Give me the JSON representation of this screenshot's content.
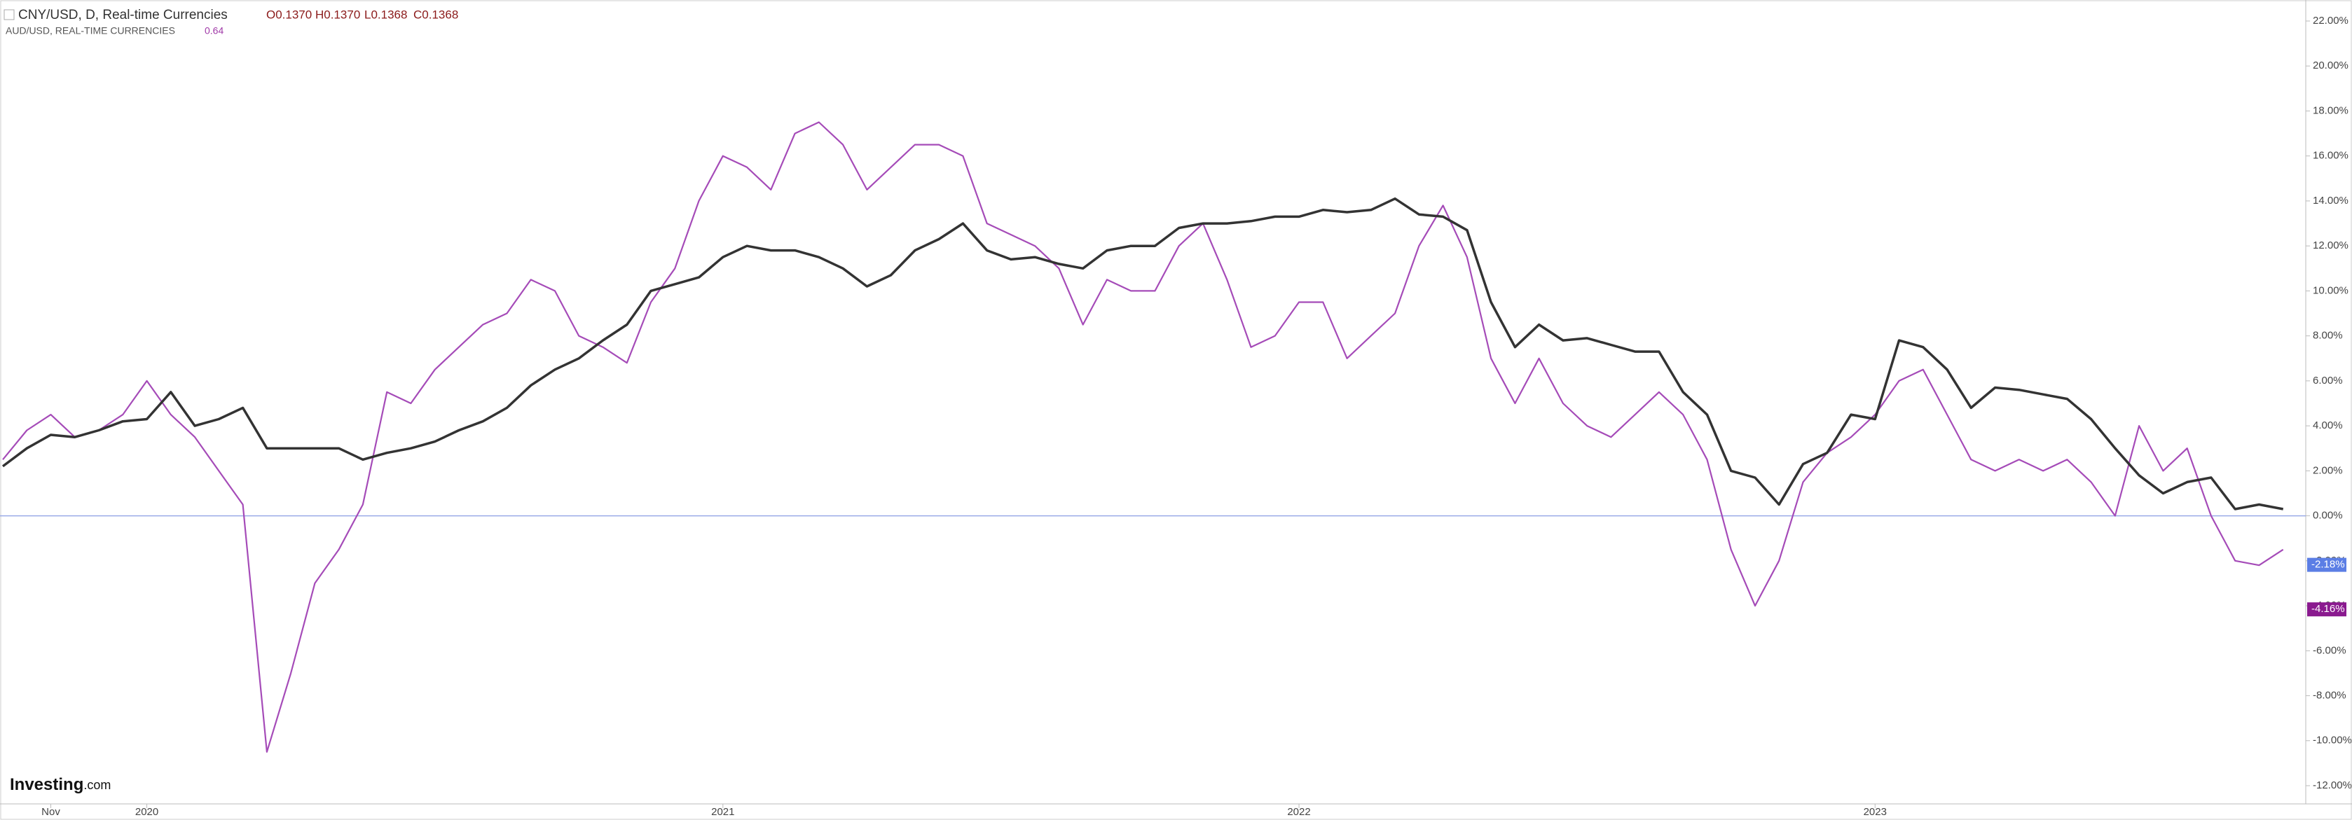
{
  "chart_data": {
    "type": "line",
    "title": "CNY/USD, D, Real-time Currencies",
    "ohlc": [
      "O0.1370",
      "H0.1370",
      "L0.1368",
      "C0.1368"
    ],
    "subtitle": "AUD/USD, REAL-TIME CURRENCIES",
    "subtitle_value": "0.64",
    "logo": [
      "Investing",
      ".com"
    ],
    "categories": [
      null,
      null,
      "Nov",
      null,
      null,
      null,
      "2020",
      null,
      null,
      null,
      null,
      null,
      null,
      null,
      null,
      null,
      null,
      null,
      null,
      null,
      null,
      null,
      null,
      null,
      null,
      null,
      null,
      null,
      null,
      null,
      "2021",
      null,
      null,
      null,
      null,
      null,
      null,
      null,
      null,
      null,
      null,
      null,
      null,
      null,
      null,
      null,
      null,
      null,
      null,
      null,
      null,
      null,
      null,
      null,
      "2022",
      null,
      null,
      null,
      null,
      null,
      null,
      null,
      null,
      null,
      null,
      null,
      null,
      null,
      null,
      null,
      null,
      null,
      null,
      null,
      null,
      null,
      null,
      null,
      "2023",
      null,
      null,
      null,
      null,
      null,
      null,
      null,
      null,
      null,
      null,
      null,
      null,
      null,
      null,
      null,
      null,
      null
    ],
    "series": [
      {
        "name": "CNY/USD",
        "color": "#333333",
        "values": [
          2.2,
          3.0,
          3.6,
          3.5,
          3.8,
          4.2,
          4.3,
          5.5,
          4.0,
          4.3,
          4.8,
          3.0,
          3.0,
          3.0,
          3.0,
          2.5,
          2.8,
          3.0,
          3.3,
          3.8,
          4.2,
          4.8,
          5.8,
          6.5,
          7.0,
          7.8,
          8.5,
          10.0,
          10.3,
          10.6,
          11.5,
          12.0,
          11.8,
          11.8,
          11.5,
          11.0,
          10.2,
          10.7,
          11.8,
          12.3,
          13.0,
          11.8,
          11.4,
          11.5,
          11.2,
          11.0,
          11.8,
          12.0,
          12.0,
          12.8,
          13.0,
          13.0,
          13.1,
          13.3,
          13.3,
          13.6,
          13.5,
          13.6,
          14.1,
          13.4,
          13.3,
          12.7,
          9.5,
          7.5,
          8.5,
          7.8,
          7.9,
          7.6,
          7.3,
          7.3,
          5.5,
          4.5,
          2.0,
          1.7,
          0.5,
          2.3,
          2.8,
          4.5,
          4.3,
          7.8,
          7.5,
          6.5,
          4.8,
          5.7,
          5.6,
          5.4,
          5.2,
          4.3,
          3.0,
          1.8,
          1.0,
          1.5,
          1.7,
          0.3,
          0.5,
          0.3
        ]
      },
      {
        "name": "AUD/USD",
        "color": "#a54bb8",
        "values": [
          2.5,
          3.8,
          4.5,
          3.5,
          3.8,
          4.5,
          6.0,
          4.5,
          3.5,
          2.0,
          0.5,
          -10.5,
          -7.0,
          -3.0,
          -1.5,
          0.5,
          5.5,
          5.0,
          6.5,
          7.5,
          8.5,
          9.0,
          10.5,
          10.0,
          8.0,
          7.5,
          6.8,
          9.5,
          11.0,
          14.0,
          16.0,
          15.5,
          14.5,
          17.0,
          17.5,
          16.5,
          14.5,
          15.5,
          16.5,
          16.5,
          16.0,
          13.0,
          12.5,
          12.0,
          11.0,
          8.5,
          10.5,
          10.0,
          10.0,
          12.0,
          13.0,
          10.5,
          7.5,
          8.0,
          9.5,
          9.5,
          7.0,
          8.0,
          9.0,
          12.0,
          13.8,
          11.5,
          7.0,
          5.0,
          7.0,
          5.0,
          4.0,
          3.5,
          4.5,
          5.5,
          4.5,
          2.5,
          -1.5,
          -4.0,
          -2.0,
          1.5,
          2.8,
          3.5,
          4.5,
          6.0,
          6.5,
          4.5,
          2.5,
          2.0,
          2.5,
          2.0,
          2.5,
          1.5,
          0.0,
          4.0,
          2.0,
          3.0,
          0.0,
          -2.0,
          -2.2,
          -1.5
        ]
      }
    ],
    "ylim": [
      -12.6,
      22.6
    ],
    "yticks": [
      {
        "value": 22,
        "label": "22.00%"
      },
      {
        "value": 20,
        "label": "20.00%"
      },
      {
        "value": 18,
        "label": "18.00%"
      },
      {
        "value": 16,
        "label": "16.00%"
      },
      {
        "value": 14,
        "label": "14.00%"
      },
      {
        "value": 12,
        "label": "12.00%"
      },
      {
        "value": 10,
        "label": "10.00%"
      },
      {
        "value": 8,
        "label": "8.00%"
      },
      {
        "value": 6,
        "label": "6.00%"
      },
      {
        "value": 4,
        "label": "4.00%"
      },
      {
        "value": 2,
        "label": "2.00%"
      },
      {
        "value": 0,
        "label": "0.00%"
      },
      {
        "value": -2,
        "label": "-2.00%"
      },
      {
        "value": -4,
        "label": "-4.00%"
      },
      {
        "value": -6,
        "label": "-6.00%"
      },
      {
        "value": -8,
        "label": "-8.00%"
      },
      {
        "value": -10,
        "label": "-10.00%"
      },
      {
        "value": -12,
        "label": "-12.00%"
      }
    ],
    "baseline": 0,
    "price_tags": [
      {
        "value": -2.18,
        "label": "-2.18%",
        "color": "#5b7ee5"
      },
      {
        "value": -4.16,
        "label": "-4.16%",
        "color": "#8a1a8f"
      }
    ]
  }
}
